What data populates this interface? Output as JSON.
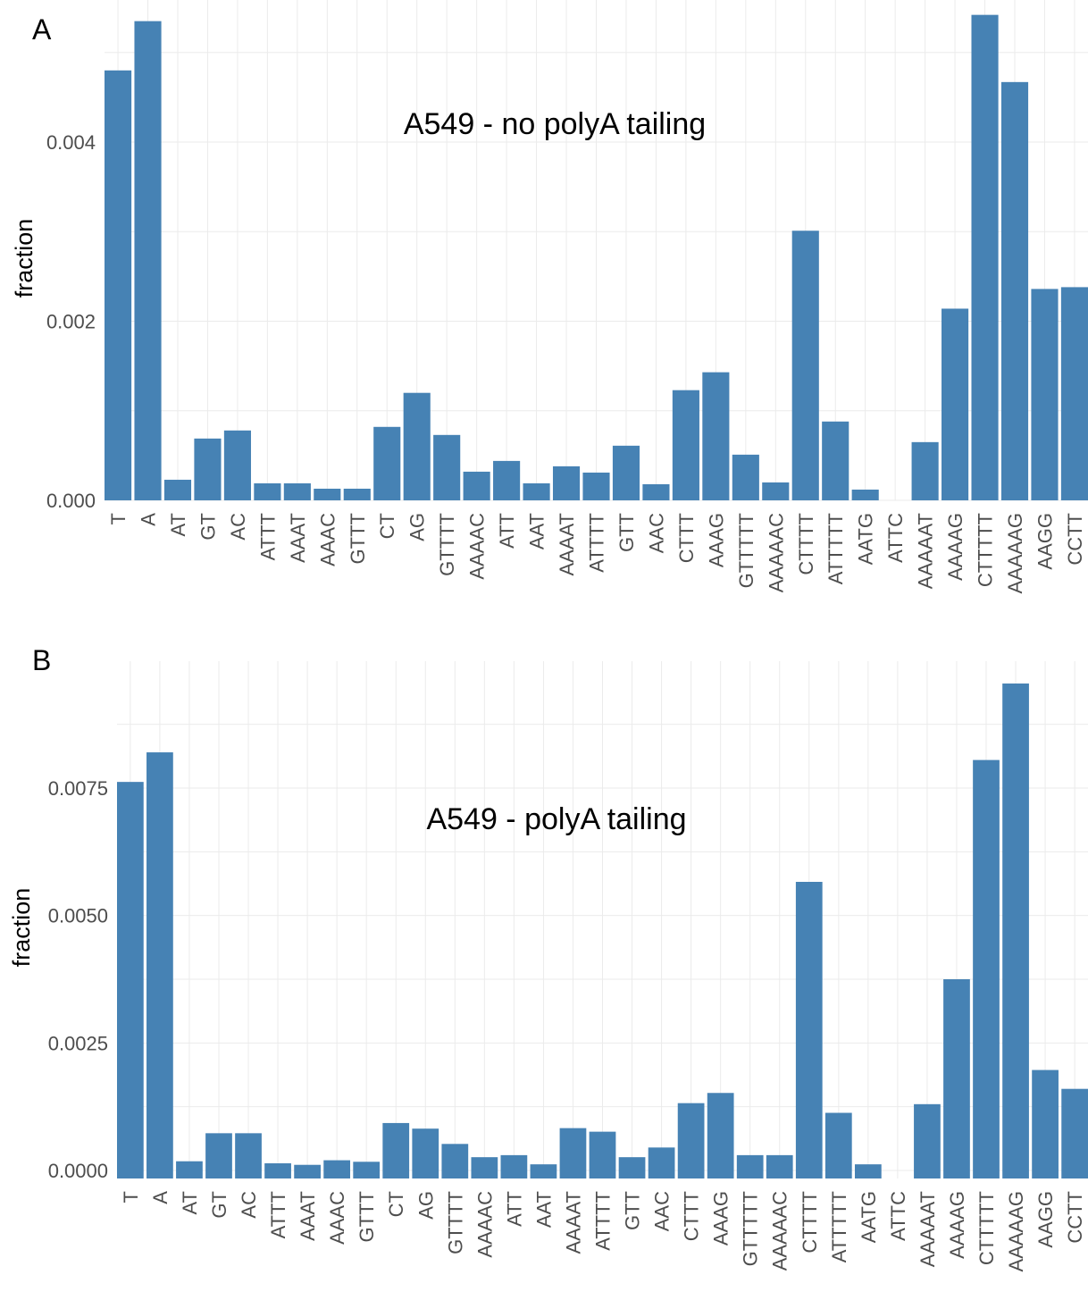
{
  "figure": {
    "bar_color": "#4682b4",
    "grid_color": "#ebebeb",
    "background": "#ffffff"
  },
  "chart_data": [
    {
      "type": "bar",
      "panel_label": "A",
      "annotation": "A549 - no polyA tailing",
      "title": "",
      "xlabel": "",
      "ylabel": "fraction",
      "ylim": [
        0,
        0.0054
      ],
      "yticks": [
        0,
        0.002,
        0.004
      ],
      "ytick_labels": [
        "0.000",
        "0.002",
        "0.004"
      ],
      "grid": true,
      "categories": [
        "T",
        "A",
        "AT",
        "GT",
        "AC",
        "ATTT",
        "AAAT",
        "AAAC",
        "GTTT",
        "CT",
        "AG",
        "GTTTT",
        "AAAAC",
        "ATT",
        "AAT",
        "AAAAT",
        "ATTTT",
        "GTT",
        "AAC",
        "CTTT",
        "AAAG",
        "GTTTTT",
        "AAAAAC",
        "CTTTT",
        "ATTTTT",
        "AATG",
        "ATTC",
        "AAAAAT",
        "AAAAG",
        "CTTTTT",
        "AAAAAG",
        "AAGG",
        "CCTT"
      ],
      "values": [
        0.0048,
        0.00535,
        0.00023,
        0.00069,
        0.00078,
        0.00019,
        0.00019,
        0.00013,
        0.00013,
        0.00082,
        0.0012,
        0.00073,
        0.00032,
        0.00044,
        0.00019,
        0.00038,
        0.00031,
        0.00061,
        0.00018,
        0.00123,
        0.00143,
        0.00051,
        0.0002,
        0.00301,
        0.00088,
        0.00012,
        0.0,
        0.00065,
        0.00214,
        0.00542,
        0.00467,
        0.00236,
        0.00238
      ]
    },
    {
      "type": "bar",
      "panel_label": "B",
      "annotation": "A549 - polyA tailing",
      "title": "",
      "xlabel": "",
      "ylabel": "fraction",
      "ylim": [
        0,
        0.0095
      ],
      "yticks": [
        0,
        0.0025,
        0.005,
        0.0075
      ],
      "ytick_labels": [
        "0.0000",
        "0.0025",
        "0.0050",
        "0.0075"
      ],
      "grid": true,
      "categories": [
        "T",
        "A",
        "AT",
        "GT",
        "AC",
        "ATTT",
        "AAAT",
        "AAAC",
        "GTTT",
        "CT",
        "AG",
        "GTTTT",
        "AAAAC",
        "ATT",
        "AAT",
        "AAAAT",
        "ATTTT",
        "GTT",
        "AAC",
        "CTTT",
        "AAAG",
        "GTTTTT",
        "AAAAAC",
        "CTTTT",
        "ATTTTT",
        "AATG",
        "ATTC",
        "AAAAAT",
        "AAAAG",
        "CTTTTT",
        "AAAAAG",
        "AAGG",
        "CCTT"
      ],
      "values": [
        0.00762,
        0.0082,
        0.00018,
        0.00073,
        0.00073,
        0.00014,
        0.00011,
        0.0002,
        0.00017,
        0.00093,
        0.00082,
        0.00052,
        0.00026,
        0.0003,
        0.00012,
        0.00083,
        0.00076,
        0.00026,
        0.00045,
        0.00132,
        0.00152,
        0.0003,
        0.0003,
        0.00566,
        0.00113,
        0.00012,
        0.0,
        0.0013,
        0.00375,
        0.00805,
        0.00955,
        0.00197,
        0.0016
      ]
    }
  ]
}
